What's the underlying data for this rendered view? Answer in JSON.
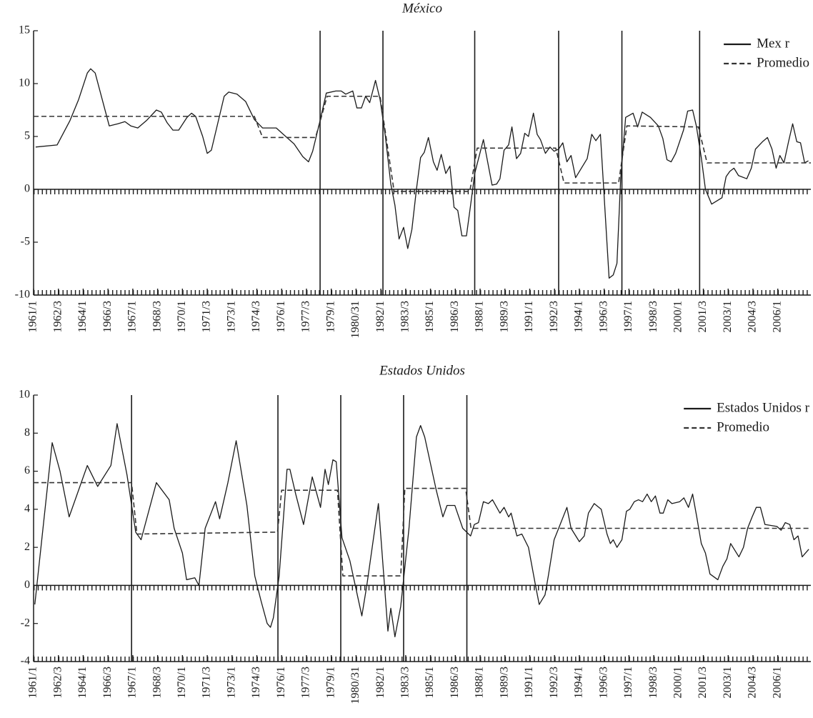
{
  "chart_data": [
    {
      "type": "line",
      "title": "México",
      "legend": "upper right",
      "xlim": [
        0,
        188
      ],
      "ylim": [
        -10,
        15
      ],
      "yticks": [
        -10,
        -5,
        0,
        5,
        10,
        15
      ],
      "xticks": [
        {
          "value": 0,
          "label": "1961/1"
        },
        {
          "value": 6,
          "label": "1962/3"
        },
        {
          "value": 12,
          "label": "1964/1"
        },
        {
          "value": 18,
          "label": "1966/3"
        },
        {
          "value": 24,
          "label": "1967/1"
        },
        {
          "value": 30,
          "label": "1968/3"
        },
        {
          "value": 36,
          "label": "1970/1"
        },
        {
          "value": 42,
          "label": "1971/3"
        },
        {
          "value": 48,
          "label": "1973/1"
        },
        {
          "value": 54,
          "label": "1974/3"
        },
        {
          "value": 60,
          "label": "1976/1"
        },
        {
          "value": 66,
          "label": "1977/3"
        },
        {
          "value": 72,
          "label": "1979/1"
        },
        {
          "value": 78,
          "label": "1980/31"
        },
        {
          "value": 84,
          "label": "1982/1"
        },
        {
          "value": 90,
          "label": "1983/3"
        },
        {
          "value": 96,
          "label": "1985/1"
        },
        {
          "value": 102,
          "label": "1986/3"
        },
        {
          "value": 108,
          "label": "1988/1"
        },
        {
          "value": 114,
          "label": "1989/3"
        },
        {
          "value": 120,
          "label": "1991/1"
        },
        {
          "value": 126,
          "label": "1992/3"
        },
        {
          "value": 132,
          "label": "1994/1"
        },
        {
          "value": 138,
          "label": "1996/3"
        },
        {
          "value": 144,
          "label": "1997/1"
        },
        {
          "value": 150,
          "label": "1998/3"
        },
        {
          "value": 156,
          "label": "2000/1"
        },
        {
          "value": 162,
          "label": "2001/3"
        },
        {
          "value": 168,
          "label": "2003/1"
        },
        {
          "value": 174,
          "label": "2004/3"
        },
        {
          "value": 180,
          "label": "2006/1"
        }
      ],
      "breaks": [
        69.3,
        84.5,
        106.7,
        127,
        142.3,
        161.1
      ],
      "series": [
        {
          "name": "Mex r",
          "color": "#1a1a1a",
          "line_style": "solid",
          "x": [
            0.5,
            5.7,
            8.8,
            10.9,
            13,
            13.8,
            14.9,
            16.6,
            18.3,
            20.4,
            22.1,
            23.5,
            25.2,
            27.3,
            29.7,
            30.9,
            32.3,
            33.7,
            35.1,
            37.1,
            38.2,
            39.2,
            40.9,
            42,
            43,
            46.1,
            47.2,
            49.2,
            51.3,
            53.4,
            55.4,
            58.7,
            60.4,
            63,
            65.1,
            66.5,
            67.5,
            69.3,
            70.8,
            73.1,
            74.4,
            75.5,
            77.2,
            78.2,
            79.3,
            80.3,
            81.3,
            82.7,
            83.8,
            85.1,
            86.4,
            87.4,
            88.4,
            89.5,
            90.5,
            91.5,
            92.6,
            93.6,
            94.5,
            95.5,
            96.7,
            97.6,
            98.6,
            99.7,
            100.7,
            101.7,
            102.6,
            103.6,
            104.7,
            105.7,
            106.7,
            108.8,
            110.9,
            112,
            112.8,
            113.8,
            114.9,
            115.7,
            116.8,
            117.8,
            118.8,
            119.7,
            120.9,
            121.8,
            122.6,
            123.8,
            124.9,
            125.9,
            127,
            128,
            129,
            130,
            131.1,
            133.9,
            135,
            136,
            137.1,
            139.2,
            140.2,
            141.1,
            142,
            143.2,
            145,
            146.1,
            147.2,
            149.2,
            151.1,
            152.2,
            153.2,
            154.2,
            155.3,
            157.2,
            158.2,
            159.4,
            160.3,
            161.5,
            162.5,
            164,
            166.5,
            167.5,
            168.4,
            169.4,
            170.5,
            172.5,
            173.6,
            174.6,
            176.3,
            177.5,
            178.6,
            179.6,
            180.5,
            181.5,
            182.6,
            183.6,
            184.6,
            185.5,
            186.5,
            187.4
          ],
          "values": [
            4.0,
            4.2,
            6.5,
            8.5,
            11.0,
            11.4,
            11.0,
            8.5,
            6.0,
            6.2,
            6.4,
            6.0,
            5.8,
            6.5,
            7.5,
            7.3,
            6.3,
            5.6,
            5.6,
            6.8,
            7.2,
            6.9,
            5.0,
            3.4,
            3.7,
            8.8,
            9.2,
            9.0,
            8.3,
            6.6,
            5.8,
            5.8,
            5.2,
            4.3,
            3.1,
            2.6,
            3.6,
            6.5,
            9.1,
            9.3,
            9.3,
            9.0,
            9.3,
            7.7,
            7.7,
            8.8,
            8.2,
            10.3,
            8.5,
            5.0,
            0.5,
            -1.5,
            -4.7,
            -3.6,
            -5.6,
            -3.8,
            0,
            3.0,
            3.5,
            4.9,
            2.6,
            1.8,
            3.3,
            1.5,
            2.2,
            -1.7,
            -2.0,
            -4.4,
            -4.4,
            -1.5,
            1.5,
            4.7,
            0.4,
            0.5,
            1.0,
            3.7,
            4.2,
            5.9,
            2.9,
            3.4,
            5.3,
            5.0,
            7.2,
            5.2,
            4.7,
            3.4,
            4.0,
            3.6,
            3.8,
            4.4,
            2.6,
            3.2,
            1.1,
            2.9,
            5.2,
            4.6,
            5.2,
            -8.4,
            -8.1,
            -7.0,
            1.0,
            6.8,
            7.2,
            5.9,
            7.3,
            6.8,
            6.0,
            4.8,
            2.8,
            2.6,
            3.4,
            5.6,
            7.4,
            7.5,
            6.0,
            3.0,
            0,
            -1.4,
            -0.8,
            1.2,
            1.7,
            2.0,
            1.3,
            1.0,
            2.0,
            3.8,
            4.5,
            4.9,
            3.8,
            2.0,
            3.2,
            2.5,
            4.5,
            6.2,
            4.5,
            4.4,
            2.5,
            2.7
          ]
        },
        {
          "name": "Promedio",
          "color": "#333333",
          "line_style": "dashed",
          "x": [
            0,
            53.4,
            55.4,
            68.2,
            71,
            83.8,
            87.2,
            105.5,
            107.3,
            126.3,
            128.3,
            141.5,
            143.5,
            160.8,
            162.9,
            188
          ],
          "values": [
            6.9,
            6.9,
            4.9,
            4.9,
            8.8,
            8.8,
            -0.2,
            -0.2,
            3.9,
            3.9,
            0.6,
            0.6,
            6.0,
            5.9,
            2.5,
            2.5
          ]
        }
      ]
    },
    {
      "type": "line",
      "title": "Estados Unidos",
      "legend": "upper right",
      "xlim": [
        0,
        188
      ],
      "ylim": [
        -4,
        10
      ],
      "yticks": [
        -4,
        -2,
        0,
        2,
        4,
        6,
        8,
        10
      ],
      "xticks": [
        {
          "value": 0,
          "label": "1961/1"
        },
        {
          "value": 6,
          "label": "1962/3"
        },
        {
          "value": 12,
          "label": "1964/1"
        },
        {
          "value": 18,
          "label": "1966/3"
        },
        {
          "value": 24,
          "label": "1967/1"
        },
        {
          "value": 30,
          "label": "1968/3"
        },
        {
          "value": 36,
          "label": "1970/1"
        },
        {
          "value": 42,
          "label": "1971/3"
        },
        {
          "value": 48,
          "label": "1973/1"
        },
        {
          "value": 54,
          "label": "1974/3"
        },
        {
          "value": 60,
          "label": "1976/1"
        },
        {
          "value": 66,
          "label": "1977/3"
        },
        {
          "value": 72,
          "label": "1979/1"
        },
        {
          "value": 78,
          "label": "1980/31"
        },
        {
          "value": 84,
          "label": "1982/1"
        },
        {
          "value": 90,
          "label": "1983/3"
        },
        {
          "value": 96,
          "label": "1985/1"
        },
        {
          "value": 102,
          "label": "1986/3"
        },
        {
          "value": 108,
          "label": "1988/1"
        },
        {
          "value": 114,
          "label": "1989/3"
        },
        {
          "value": 120,
          "label": "1991/1"
        },
        {
          "value": 126,
          "label": "1992/3"
        },
        {
          "value": 132,
          "label": "1994/1"
        },
        {
          "value": 138,
          "label": "1996/3"
        },
        {
          "value": 144,
          "label": "1997/1"
        },
        {
          "value": 150,
          "label": "1998/3"
        },
        {
          "value": 156,
          "label": "2000/1"
        },
        {
          "value": 162,
          "label": "2001/3"
        },
        {
          "value": 168,
          "label": "2003/1"
        },
        {
          "value": 174,
          "label": "2004/3"
        },
        {
          "value": 180,
          "label": "2006/1"
        }
      ],
      "breaks": [
        23.7,
        59.1,
        74.3,
        89.5,
        104.8
      ],
      "series": [
        {
          "name": "Estados Unidos r",
          "color": "#1a1a1a",
          "line_style": "solid",
          "x": [
            0.3,
            4.5,
            6.4,
            8.6,
            13,
            15.5,
            18.7,
            20.2,
            22.6,
            24.7,
            26,
            29.7,
            32.8,
            34,
            36,
            37,
            39,
            40,
            41.5,
            44,
            45,
            47,
            49,
            51.6,
            53.5,
            55,
            56.5,
            57.3,
            58,
            59.4,
            61.3,
            62,
            63.4,
            65.3,
            67.4,
            69.4,
            70.5,
            71.3,
            72.4,
            73.2,
            74.6,
            76.5,
            79.4,
            80.6,
            83.4,
            85.7,
            86.4,
            87.4,
            88.8,
            90.8,
            92.6,
            93.6,
            94.6,
            97.4,
            99,
            100,
            101.9,
            103.8,
            105.7,
            106.6,
            107.6,
            108.8,
            110,
            111,
            112.8,
            113.8,
            114.9,
            115.5,
            116.9,
            118.1,
            119.7,
            121.4,
            122.3,
            123.7,
            124.5,
            125.9,
            127,
            129,
            130,
            132,
            133.2,
            134.2,
            135.6,
            137.3,
            138.7,
            139.5,
            140.2,
            141.1,
            142.3,
            143.4,
            144.2,
            145.3,
            146.3,
            147.3,
            148.4,
            149.4,
            150.4,
            151.5,
            152.3,
            153.4,
            154.4,
            156.3,
            157.3,
            158.4,
            159.4,
            160.4,
            161.5,
            162.5,
            163.6,
            165.5,
            166.7,
            167.7,
            168.6,
            170.6,
            171.7,
            172.7,
            173.8,
            174.8,
            175.8,
            176.9,
            179.8,
            180.8,
            181.8,
            182.9,
            183.9,
            184.9,
            185.9,
            187.5
          ],
          "values": [
            -1.0,
            7.5,
            6.0,
            3.6,
            6.3,
            5.2,
            6.3,
            8.5,
            5.8,
            2.8,
            2.4,
            5.4,
            4.5,
            3.0,
            1.7,
            0.3,
            0.4,
            0,
            3.0,
            4.4,
            3.5,
            5.4,
            7.6,
            4.2,
            0.5,
            -0.8,
            -2.0,
            -2.2,
            -1.7,
            0.5,
            6.1,
            6.1,
            4.8,
            3.2,
            5.7,
            4.1,
            6.1,
            5.3,
            6.6,
            6.5,
            2.5,
            1.3,
            -1.6,
            0,
            4.3,
            -2.4,
            -1.2,
            -2.7,
            -1.1,
            3.0,
            7.8,
            8.4,
            7.8,
            5.0,
            3.6,
            4.2,
            4.2,
            3.0,
            2.6,
            3.2,
            3.3,
            4.4,
            4.3,
            4.5,
            3.8,
            4.1,
            3.6,
            3.8,
            2.6,
            2.7,
            2.0,
            0,
            -1.0,
            -0.5,
            0.5,
            2.4,
            3.0,
            4.1,
            3.0,
            2.3,
            2.6,
            3.8,
            4.3,
            4.0,
            2.7,
            2.2,
            2.4,
            2.0,
            2.4,
            3.9,
            4.0,
            4.4,
            4.5,
            4.4,
            4.8,
            4.4,
            4.7,
            3.8,
            3.8,
            4.5,
            4.3,
            4.4,
            4.6,
            4.1,
            4.8,
            3.6,
            2.2,
            1.7,
            0.6,
            0.3,
            1.0,
            1.4,
            2.2,
            1.5,
            2.0,
            3.0,
            3.6,
            4.1,
            4.1,
            3.2,
            3.1,
            2.9,
            3.3,
            3.2,
            2.4,
            2.6,
            1.5,
            1.9
          ]
        },
        {
          "name": "Promedio",
          "color": "#333333",
          "line_style": "dashed",
          "x": [
            0,
            23.7,
            25,
            59,
            60,
            73.5,
            74.8,
            88.8,
            89.8,
            104.5,
            105.8,
            188
          ],
          "values": [
            5.4,
            5.4,
            2.7,
            2.8,
            5.0,
            5.0,
            0.5,
            0.5,
            5.1,
            5.1,
            3.0,
            3.0
          ]
        }
      ]
    }
  ]
}
